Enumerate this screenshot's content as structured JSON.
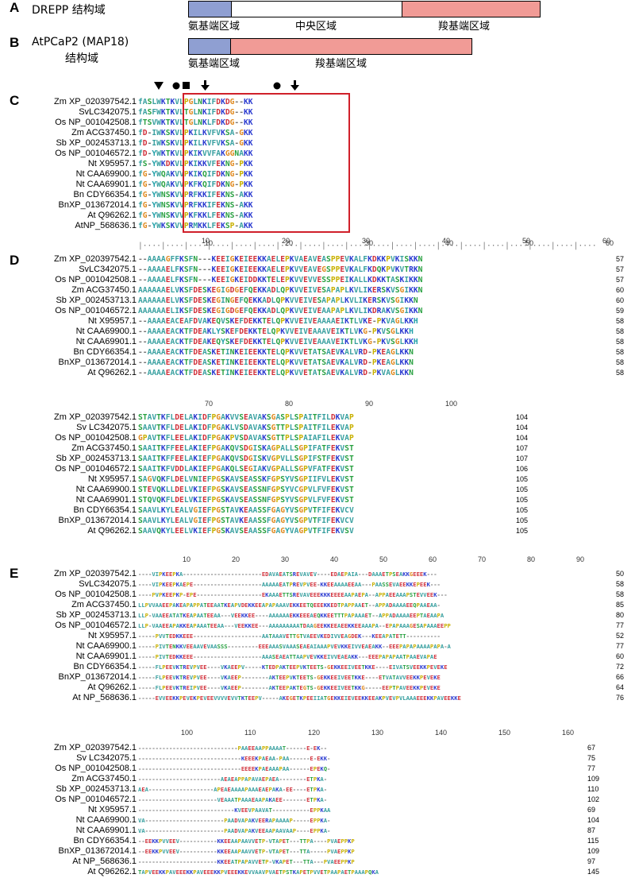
{
  "panelA": {
    "letter": "A",
    "title": "DREPP 结构域",
    "regions": [
      "氨基端区域",
      "中央区域",
      "羧基端区域"
    ],
    "colors": [
      "#8f9fd2",
      "#ffffff",
      "#f19b96"
    ]
  },
  "panelB": {
    "letter": "B",
    "title_line1": "AtPCaP2 (MAP18)",
    "title_line2": "结构域",
    "regions": [
      "氨基端区域",
      "羧基端区域"
    ],
    "colors": [
      "#8f9fd2",
      "#f19b96"
    ]
  },
  "panelC": {
    "letter": "C",
    "names": [
      "Zm XP_020397542.1",
      "SvLC342075.1",
      "Os NP_001042508.1",
      "Zm ACG37450.1",
      "Sb XP_002453713.1",
      "Os NP_001046572.1",
      "Nt X95957.1",
      "Nt CAA69900.1",
      "Nt CAA69901.1",
      "Bn CDY66354.1",
      "BnXP_013672014.1",
      "At Q96262.1",
      "AtNP_568636.1"
    ],
    "seqs": [
      "fASLWKTKVLPGLNKIFDKDG--KK",
      "fASFWKTKVLTGLNKIFDKDG--KK",
      "fTSVWKTKVLTGLNKLFDKDG--KK",
      "fD-IWKSKVLPKILKVFVKSA-GKK",
      "fD-IWKSKVLPKILKVFVKSA-GKK",
      "fD-YWKTKVLPKIKVVFAKGGNAKK",
      "fS-YWKDKVLPKIKKVFEKNG-PKK",
      "fG-YWQAKVVPKIKQIFDKNG-PKK",
      "fG-YWQAKVVPKFKQIFDKNG-PKK",
      "fG-YWNSKVVPRFKKIFEKNS-AKK",
      "fG-YWNSKVVPRFKKIFEKNS-AKK",
      "fG-YWNSKVVPKFKKLFEKNS-AKK",
      "fG-YWKSKVVPRMKKLFEKSP-AKK"
    ],
    "ruler": [
      "10",
      "20",
      "30",
      "40",
      "50",
      "60"
    ],
    "markers": [
      "triangle",
      "circle",
      "square",
      "arrow",
      "circle",
      "arrow"
    ]
  },
  "panelD": {
    "letter": "D",
    "block1": {
      "names": [
        "Zm XP_020397542.1",
        "SvLC342075.1",
        "Os NP_001042508.1",
        "Zm ACG37450.1",
        "Sb XP_002453713.1",
        "Os NP_001046572.1",
        "Nt X95957.1",
        "Nt CAA69900.1",
        "Nt CAA69901.1",
        "Bn CDY66354.1",
        "BnXP_013672014.1",
        "At Q96262.1"
      ],
      "seqs": [
        "--AAAAGFFKSFN---KEEIGKEIEEKKAELEPKVAEAVEASPPEVKALFKDKKPVKISKKN",
        "--AAAAELFKSFN---KEEIGKEIEEKKAELEPKVVEAVEGSPPEVKALFKDQKPVKVTRKN",
        "--AAAAELFKSFN---KEEIGKEIDDKKTELEPKVVEVVESSPPEIKALLKDKKTASKIKKN",
        "AAAAAAELVKSFDESKEGIGDGEFQEKKADLQPKVVEIVESAPAPLKVLIKERSKVSGIKKN",
        "AAAAAAELVKSFDESKEGINGEFQEKKADLQPKVVEIVESAPAPLKVLIKERSKVSGIKKN",
        "AAAAAAELIKSFDESKEGIGDGEFQEKKADLQPKVVEIVEAAPAPLKVLIKDRAKVSGIKKN",
        "--AAAAEACEAFDVAKEQVSKEFDEKKTELQPKVVEIVEAAAAEIKTLVKE-PKVAGLKKH",
        "--AAAAEACKTFDEAKLYSKEFDEKKTELQPKVVEIVEAAAVEIKTLVKG-PKVSGLKKH",
        "--AAAAEACKTFDEAKEQYSKEFDEKKTELQPKVVEIVEAAAVEIKTLVKG-PKVSGLKKH",
        "--AAAAEACKTFDEASKETINKEIEEKKTELQPKVVETATSAEVKALVRD-PKEAGLKKN",
        "--AAAAEACKTFDEASKETINKEIEEKKTELQPKVVETATSAEVKALVRD-PKEAGLKKN",
        "--AAAAEACKTFDEASKETINKEIEEKKTELQPKVVETATSAEVKALVRD-PKVAGLKKN"
      ],
      "counts": [
        "57",
        "57",
        "57",
        "60",
        "60",
        "59",
        "58",
        "58",
        "58",
        "58",
        "58",
        "58"
      ],
      "ruler": [
        "10",
        "20",
        "30",
        "40",
        "50",
        "60"
      ]
    },
    "block2": {
      "names": [
        "Zm XP_020397542.1",
        "Sv LC342075.1",
        "Os NP_001042508.1",
        "Zm ACG37450.1",
        "Sb XP_002453713.1",
        "Os NP_001046572.1",
        "Nt X95957.1",
        "Nt CAA69900.1",
        "Nt CAA69901.1",
        "Bn CDY66354.1",
        "BnXP_013672014.1",
        "At Q96262.1"
      ],
      "seqs": [
        "STAVTKFLDELAKIDFPGAKVVSEAVAKSGASPLSPAITFILDKVAP",
        "SAAVTKFLDELAKIDFPGAKLVSDAVAKSGTTPLSPAITFILEKVAP",
        "GPAVTKFLEELAKIDFPGAKPVSDAVAKSGTTPLSPAIAFILEKVAP",
        "SAAITKFFEELAKIEFPGAKQVSDGISKAGPALLSGPIFATFEKVST",
        "SAAITKFFEELAKIEFPGAKQVSDGISKVGPVLLSGPIFSTFEKVST",
        "SAAITKFVDDLAKIEFPGAKQLSEGIAKVGPALLSGPVFATFEKVST",
        "SAGVQKFLDELVNIEFPGSKAVSEASSKFGPSYVSGPIIFVLEKVST",
        "STEVQKLLDELVKIEFPGSKAVSEASSNFGPSYVCGPVLFVFEKVST",
        "STQVQKFLDELVKIEFPGSKAVSEASSNFGPSYVSGPVLFVFEKVST",
        "SAAVLKYLEALVGIEFPGSTAVKEAASSFGAGYVSGPVTFIFEKVCV",
        "SAAVLKYLEALVGIEFPGSTAVKEAASSFGAGYVSGPVTFIFEKVCV",
        "SAAVQKYLEELVKIEFPGSKAVSEAASSFGAGYVAGPVTFIFEKVSV"
      ],
      "counts": [
        "104",
        "104",
        "104",
        "107",
        "107",
        "106",
        "105",
        "105",
        "105",
        "105",
        "105",
        "105"
      ],
      "ruler": [
        "70",
        "80",
        "90",
        "100"
      ]
    }
  },
  "panelE": {
    "letter": "E",
    "block1": {
      "names": [
        "Zm XP_020397542.1",
        "SvLC342075.1",
        "Os NP_001042508.1",
        "Zm ACG37450.1",
        "Sb XP_002453713.1",
        "Os NP_001046572.1",
        "Nt X95957.1",
        "Nt CAA69900.1",
        "Nt CAA69901.1",
        "Bn CDY66354.1",
        "BnXP_013672014.1",
        "At Q96262.1",
        "At NP_568636.1"
      ],
      "seqs": [
        "----VIPKEEPKA-----------------------EDAVAEATSREVAVEV----EDAEPAIA---DAAAETPSEAKKGEEEK---",
        "----VIPKEEPKAEPE--------------------AAAAAEATPREVPVEE-KKEEAAAAEEAA---PAASSEVAEEKKEPEEK---",
        "----PVPKEEPKP-EPE-------------------EKAAAETTSREVAVEEEKKKEEEEAAPAEPA--APPAEEAAAPSTEVVEEK---",
        "LLPVVAAEEPAKEAPAPPATEEAATKEAPVDEKKEEAPAPAAAVEKKEETQEEEKKEDTPAPPAAET--APPADAAAAEEQPAAEAA-",
        "LLP-VAAEEATATKEAPAATEEAA---VEEKKEE----AAAAAAEKKEEEAEQKKEETTTPAPAAAET--APPADAAAAEEPTAEAAPA",
        "LLP-VAAEEAPAKKEAPAAATEEAA---VEEKKEE---AAAAAAAAATDAAGEEKKEEAEEKKEEAAAPA--EPAPAAAGESAPAAAEEPP",
        "-----PVVTEDKKEEE--------------------AATAAAVETTGTVAEEVKEDIVVEAGDEK---KEEAPATETT----------",
        "-----PIVTENKKVEEAAVEVAASSS---------EEEAAASVAAASEAEAIAAAPVEVKKEIVVEAEAKK--EEEPAPAPAAAAPAPA-A",
        "-----PIVTEDKKEEE--------------------AAASEAEATTAAPVEVKKEIVVEAEAKK---EEEPAPAPAATPAAEVAPAE",
        "-----FLPEEVKTREVPVEE----VKAEEPV-----KTEDPAKTEEPVKTEETS-GEKKEEIVEETKKE----EIVATSVEEKKPEVEKE",
        "-----FLPEEVKTREVPVEE----VKAEEP--------AKTEEPVKTEETS-GEKKEEIVEETKKE----ETVATAVVEEKKPEVEKE",
        "-----FLPEEVKTREIPVEE----VKAEEP--------AKTEEPAKTEGTS-GEKKEEIVEETKKG-----EEPTPAVEEKKPEVEKE",
        "-----EVVEEKKPEVEKPEVEEVVVVEVVTKTEEPV-----AKEGETKPEEIIATGEKKEIEVEEKKEEAKPVEVPVLAAAEEEKKPAVEEKKE"
      ],
      "counts": [
        "50",
        "58",
        "58",
        "85",
        "80",
        "77",
        "52",
        "77",
        "60",
        "72",
        "66",
        "64",
        "76"
      ],
      "ruler": [
        "10",
        "20",
        "30",
        "40",
        "50",
        "60",
        "70",
        "80",
        "90"
      ]
    },
    "block2": {
      "names": [
        "Zm XP_020397542.1",
        "Sv LC342075.1",
        "Os NP_001042508.1",
        "Zm ACG37450.1",
        "Sb XP_002453713.1",
        "Os NP_001046572.1",
        "Nt X95957.1",
        "Nt CAA69900.1",
        "Nt CAA69901.1",
        "Bn CDY66354.1",
        "BnXP_013672014.1",
        "At NP_568636.1",
        "At Q96262.1"
      ],
      "seqs": [
        "-----------------------------PAAEEAAPPAAAAT------E-EK--",
        "------------------------------KEEEKPAEAA-PAA------E-EKK-",
        "------------------------------EEEEKPAEAAAPAA------EPEKQ-",
        "------------------------AEAEAPPAPAVAEPAEA--------ETPKA-",
        "AEA-------------------APEAEAAAAPAAAEAEPAKA-EE----ETPKA-",
        "-----------------------VEAAATPAAAEAAPAKAEE-------ETPKA-",
        "----------------------------KVEEVPAAVAT-----------EPPKAA",
        "VA-----------------------PAADVAPAKVEERAPAAAAP-----EPPKA-",
        "VA-----------------------PAADVAPAKVEEAAPAAVAAP----EPPKA-",
        "--EEKKPVVEEV-----------KKEEAAPAAVVETP-VTAPET---TTPA----PVAEPPKP",
        "--EEKKPVVEEV-----------KKEEAAPAAVVETP-VTAPET---TTA-----PVAEPPKP",
        "-----------------------KKEEATPAPAVVETP-VKAPET---TTA---PVAEEPPKP",
        "TAPVEEKKPAVEEEKKPAVEEEKKPVEEEKKEVVAAVPVAETPSTKAPETPVVETPAAPAETPAAAPQKA"
      ],
      "counts": [
        "67",
        "75",
        "77",
        "109",
        "110",
        "102",
        "69",
        "104",
        "87",
        "115",
        "109",
        "97",
        "145"
      ],
      "ruler": [
        "100",
        "110",
        "120",
        "130",
        "140",
        "150",
        "160"
      ]
    }
  },
  "colors": {
    "redbox": "#d0202a"
  }
}
